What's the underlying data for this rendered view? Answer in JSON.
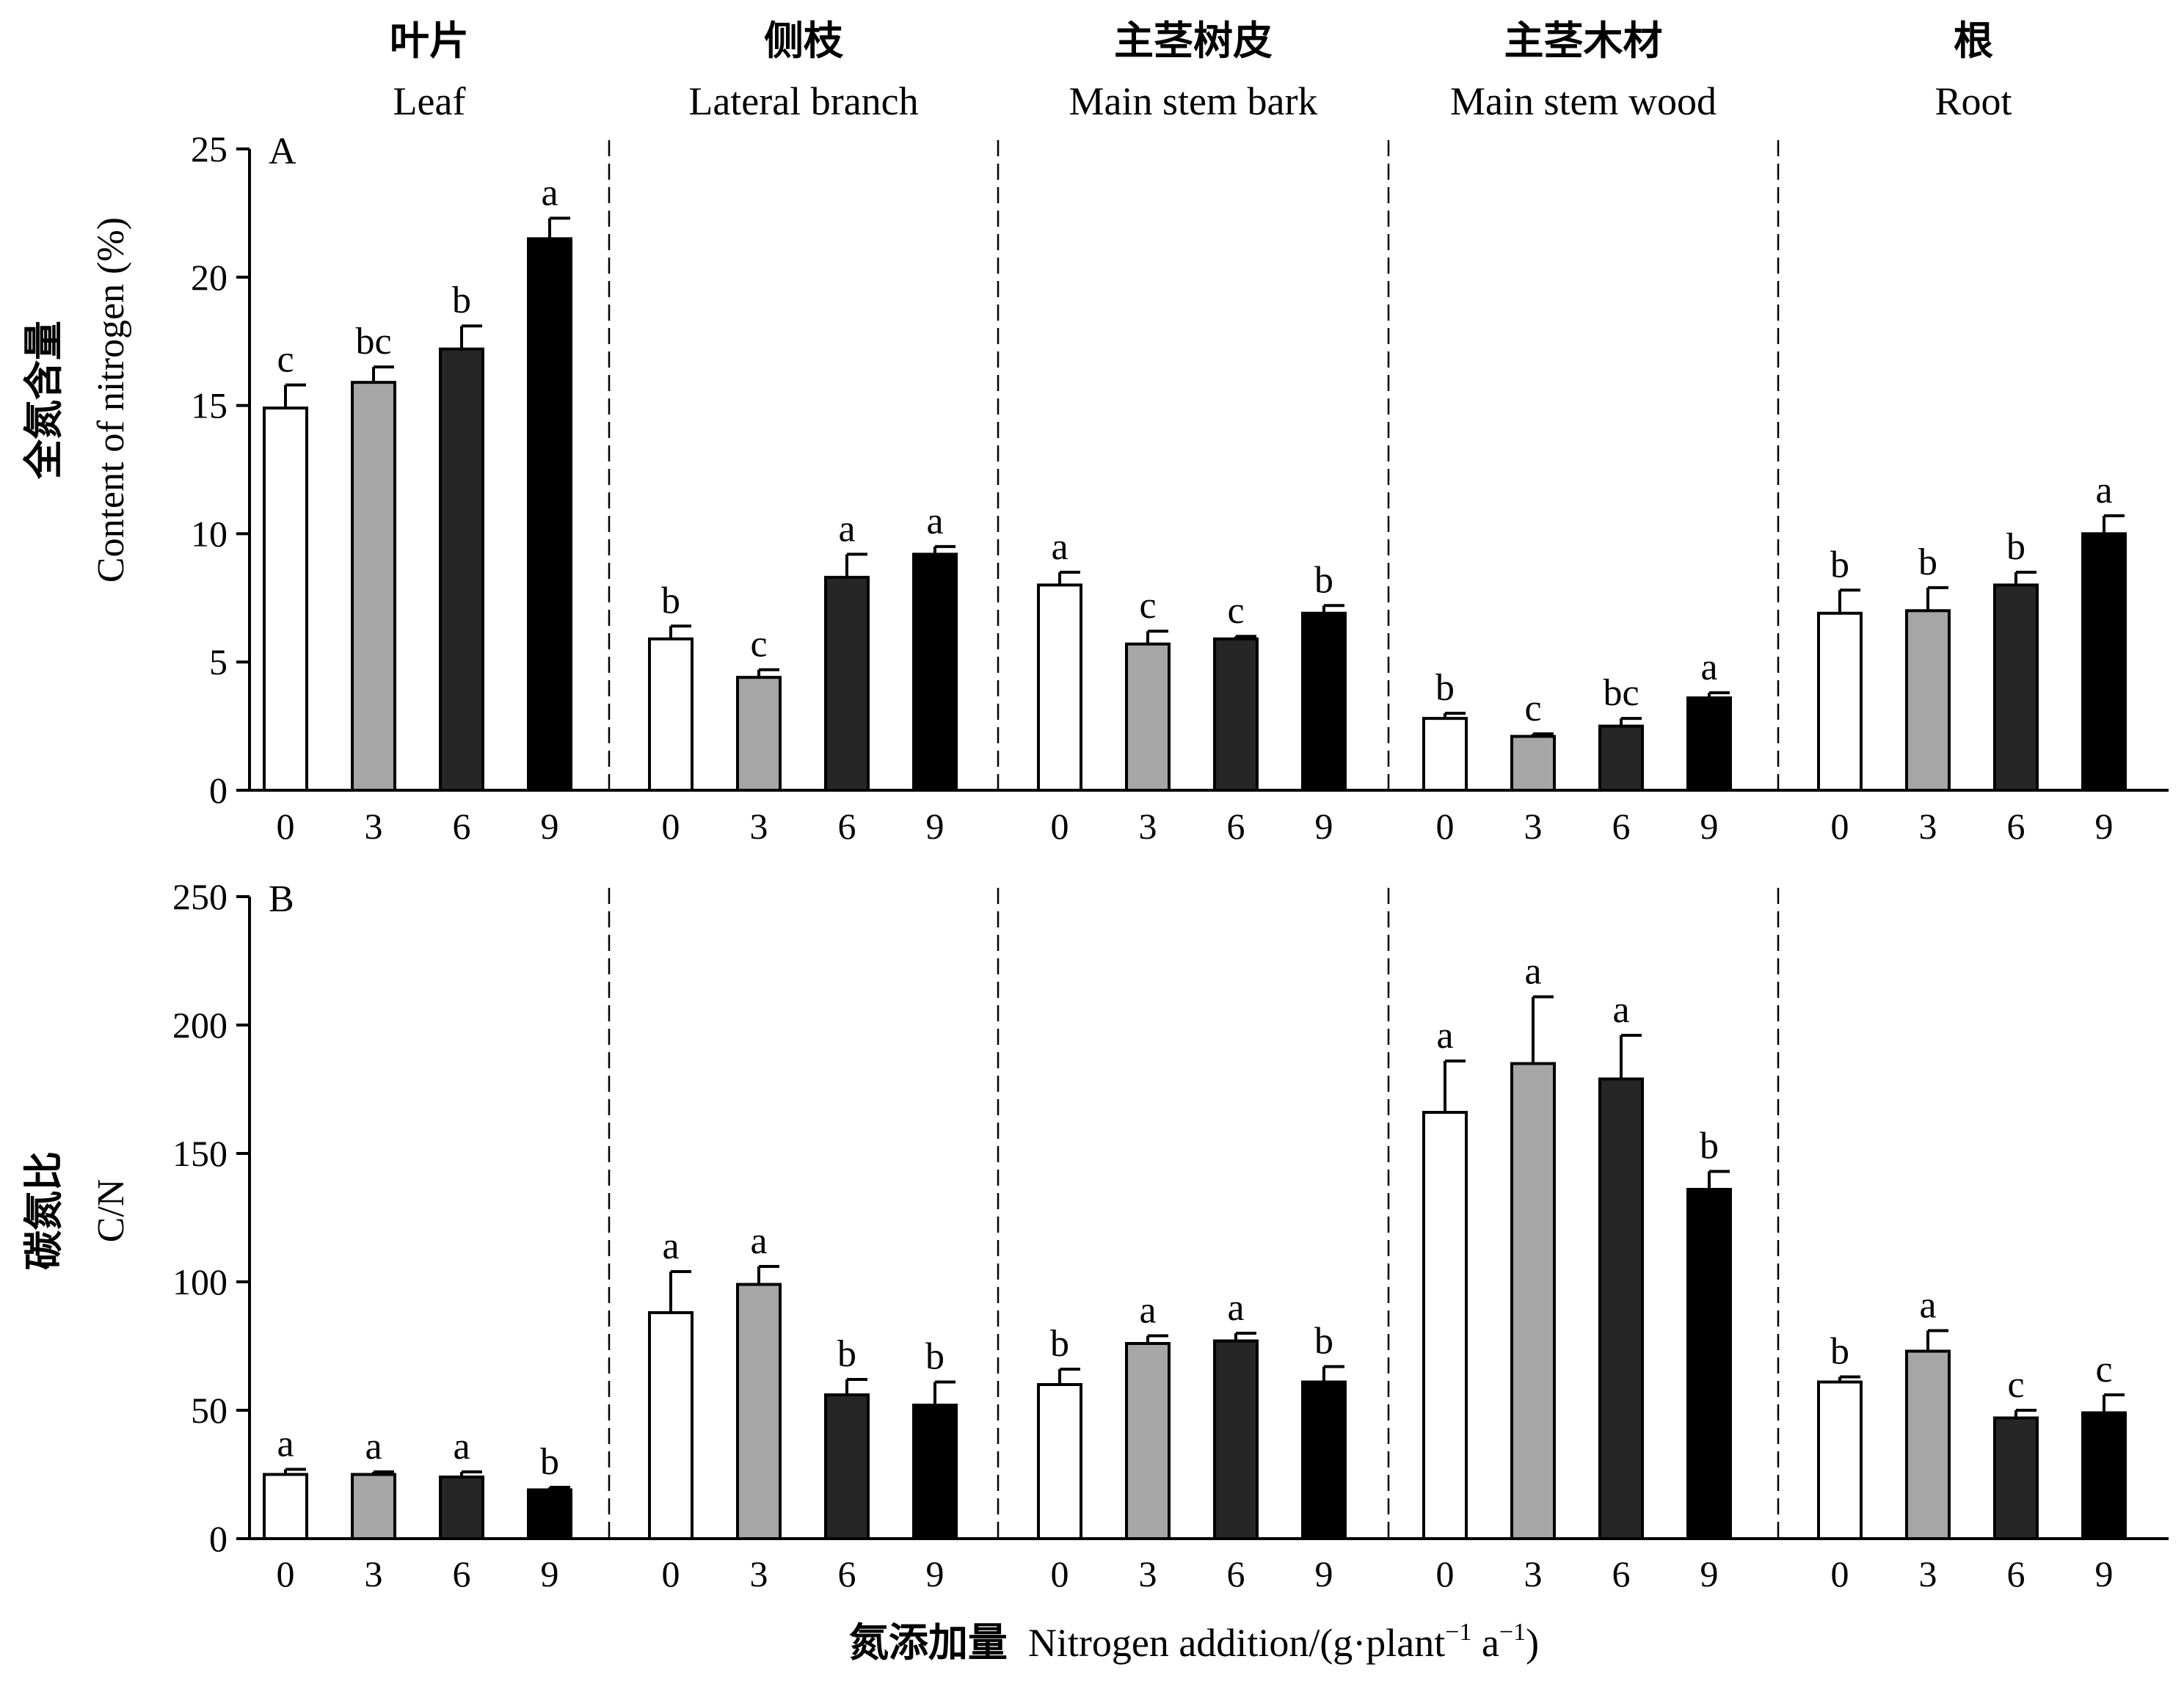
{
  "groups": [
    {
      "cn": "叶片",
      "en": "Leaf"
    },
    {
      "cn": "侧枝",
      "en": "Lateral branch"
    },
    {
      "cn": "主茎树皮",
      "en": "Main stem bark"
    },
    {
      "cn": "主茎木材",
      "en": "Main stem wood"
    },
    {
      "cn": "根",
      "en": "Root"
    }
  ],
  "x_axis": {
    "label_cn": "氮添加量",
    "label_en": "Nitrogen addition/(g·plant",
    "sup1": "−1",
    "mid": " a",
    "sup2": "−1",
    "close": ")"
  },
  "colors": {
    "0": "#ffffff",
    "3": "#a6a6a6",
    "6": "#262626",
    "9": "#000000"
  },
  "chart_data": [
    {
      "type": "bar",
      "panel_label": "A",
      "ylabel_cn": "全氮含量",
      "ylabel_en": "Content of nitrogen (%)",
      "ylim": [
        0,
        25
      ],
      "yticks": [
        0,
        5,
        10,
        15,
        20,
        25
      ],
      "categories": [
        "0",
        "3",
        "6",
        "9"
      ],
      "groups": [
        {
          "name": "Leaf",
          "values": [
            14.9,
            15.9,
            17.2,
            21.5
          ],
          "errors": [
            0.9,
            0.6,
            0.9,
            0.8
          ],
          "letters": [
            "c",
            "bc",
            "b",
            "a"
          ]
        },
        {
          "name": "Lateral branch",
          "values": [
            5.9,
            4.4,
            8.3,
            9.2
          ],
          "errors": [
            0.5,
            0.3,
            0.9,
            0.3
          ],
          "letters": [
            "b",
            "c",
            "a",
            "a"
          ]
        },
        {
          "name": "Main stem bark",
          "values": [
            8.0,
            5.7,
            5.9,
            6.9
          ],
          "errors": [
            0.5,
            0.5,
            0.1,
            0.3
          ],
          "letters": [
            "a",
            "c",
            "c",
            "b"
          ]
        },
        {
          "name": "Main stem wood",
          "values": [
            2.8,
            2.1,
            2.5,
            3.6
          ],
          "errors": [
            0.2,
            0.1,
            0.3,
            0.2
          ],
          "letters": [
            "b",
            "c",
            "bc",
            "a"
          ]
        },
        {
          "name": "Root",
          "values": [
            6.9,
            7.0,
            8.0,
            10.0
          ],
          "errors": [
            0.9,
            0.9,
            0.5,
            0.7
          ],
          "letters": [
            "b",
            "b",
            "b",
            "a"
          ]
        }
      ]
    },
    {
      "type": "bar",
      "panel_label": "B",
      "ylabel_cn": "碳氮比",
      "ylabel_en": "C/N",
      "ylim": [
        0,
        250
      ],
      "yticks": [
        0,
        50,
        100,
        150,
        200,
        250
      ],
      "categories": [
        "0",
        "3",
        "6",
        "9"
      ],
      "groups": [
        {
          "name": "Leaf",
          "values": [
            25,
            25,
            24,
            19
          ],
          "errors": [
            2,
            1,
            2,
            1
          ],
          "letters": [
            "a",
            "a",
            "a",
            "b"
          ]
        },
        {
          "name": "Lateral branch",
          "values": [
            88,
            99,
            56,
            52
          ],
          "errors": [
            16,
            7,
            6,
            9
          ],
          "letters": [
            "a",
            "a",
            "b",
            "b"
          ]
        },
        {
          "name": "Main stem bark",
          "values": [
            60,
            76,
            77,
            61
          ],
          "errors": [
            6,
            3,
            3,
            6
          ],
          "letters": [
            "b",
            "a",
            "a",
            "b"
          ]
        },
        {
          "name": "Main stem wood",
          "values": [
            166,
            185,
            179,
            136
          ],
          "errors": [
            20,
            26,
            17,
            7
          ],
          "letters": [
            "a",
            "a",
            "a",
            "b"
          ]
        },
        {
          "name": "Root",
          "values": [
            61,
            73,
            47,
            49
          ],
          "errors": [
            2,
            8,
            3,
            7
          ],
          "letters": [
            "b",
            "a",
            "c",
            "c"
          ]
        }
      ]
    }
  ]
}
